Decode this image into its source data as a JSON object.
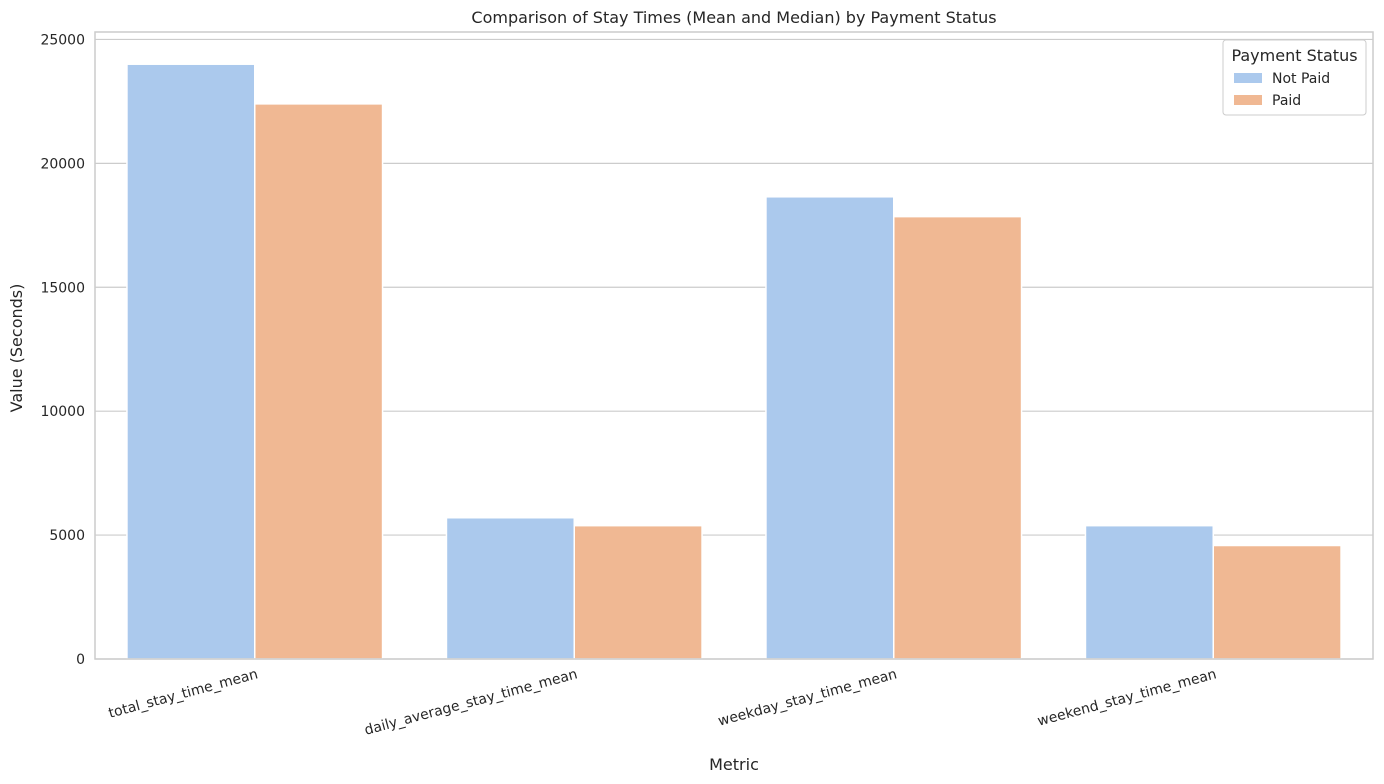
{
  "chart_data": {
    "type": "bar",
    "title": "Comparison of Stay Times (Mean and Median) by Payment Status",
    "xlabel": "Metric",
    "ylabel": "Value (Seconds)",
    "ylim": [
      0,
      25300
    ],
    "yticks": [
      0,
      5000,
      10000,
      15000,
      20000,
      25000
    ],
    "grid": "y",
    "legend_title": "Payment Status",
    "legend_position": "top-right",
    "categories": [
      "total_stay_time_mean",
      "daily_average_stay_time_mean",
      "weekday_stay_time_mean",
      "weekend_stay_time_mean"
    ],
    "series": [
      {
        "name": "Not Paid",
        "color": "#abc9ed",
        "values": [
          24000,
          5700,
          18650,
          5380
        ]
      },
      {
        "name": "Paid",
        "color": "#f0b893",
        "values": [
          22400,
          5380,
          17850,
          4580
        ]
      }
    ]
  }
}
